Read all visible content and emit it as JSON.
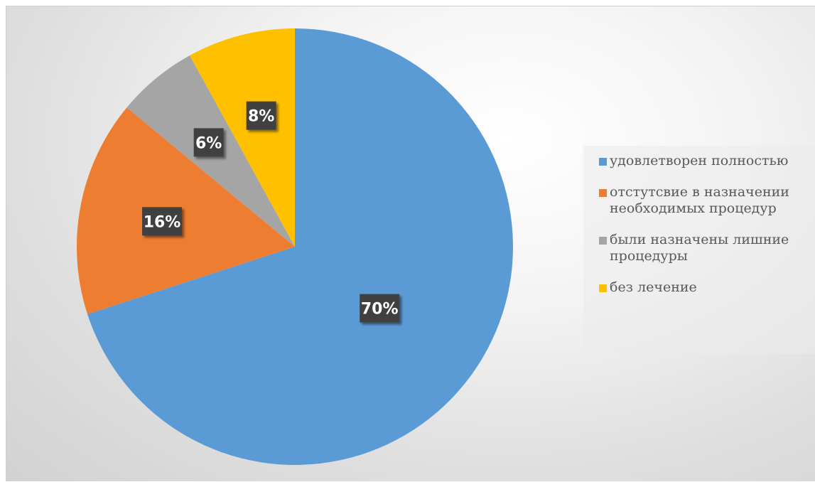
{
  "chart_data": {
    "type": "pie",
    "categories": [
      "удовлетворен полностью",
      "отстутсвие в назначении необходимых процедур",
      "были назначены лишние процедуры",
      "без лечение"
    ],
    "values": [
      70,
      16,
      6,
      8
    ],
    "data_labels": [
      "70%",
      "16%",
      "6%",
      "8%"
    ],
    "colors": [
      "#5B9BD5",
      "#ED7D31",
      "#A5A5A5",
      "#FFC000"
    ],
    "title": "",
    "legend_placement": "right"
  },
  "legend": {
    "items": [
      {
        "label": "удовлетворен полностью",
        "color": "#5B9BD5"
      },
      {
        "label": "отстутсвие в назначении необходимых процедур",
        "color": "#ED7D31"
      },
      {
        "label": "были назначены лишние процедуры",
        "color": "#A5A5A5"
      },
      {
        "label": "без лечение",
        "color": "#FFC000"
      }
    ]
  }
}
